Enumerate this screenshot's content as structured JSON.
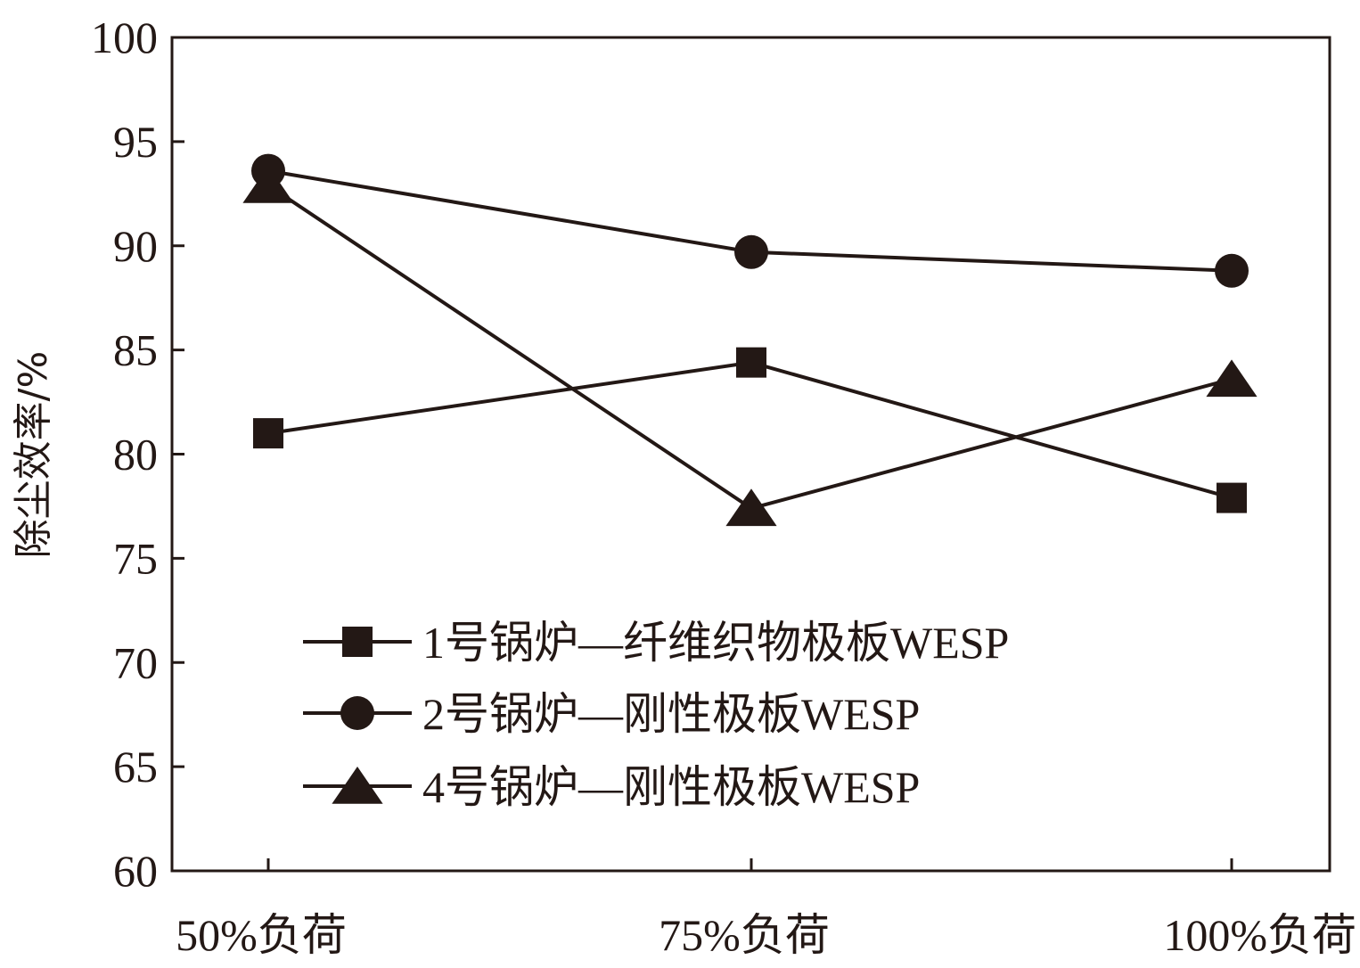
{
  "chart_data": {
    "type": "line",
    "categories": [
      "50%负荷",
      "75%负荷",
      "100%负荷"
    ],
    "ylabel": "除尘效率/%",
    "xlabel": "",
    "ylim": [
      60,
      100
    ],
    "yticks": [
      60,
      65,
      70,
      75,
      80,
      85,
      90,
      95,
      100
    ],
    "grid": false,
    "legend_position": "bottom-left",
    "series": [
      {
        "name": "1号锅炉—纤维织物极板WESP",
        "marker": "square",
        "values": [
          81.0,
          84.4,
          77.9
        ]
      },
      {
        "name": "2号锅炉—刚性极板WESP",
        "marker": "circle",
        "values": [
          93.6,
          89.7,
          88.8
        ]
      },
      {
        "name": "4号锅炉—刚性极板WESP",
        "marker": "triangle",
        "values": [
          92.9,
          77.4,
          83.6
        ]
      }
    ],
    "colors": {
      "line": "#231815",
      "background": "#ffffff"
    }
  }
}
